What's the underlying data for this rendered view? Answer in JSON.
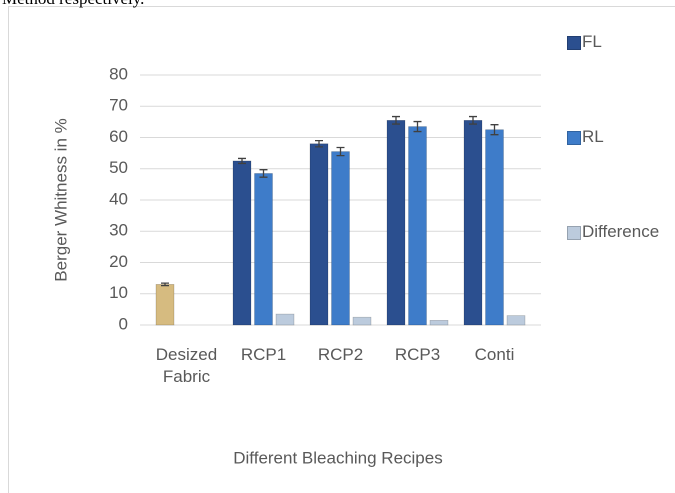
{
  "caption": "Method respectively.",
  "chart_data": {
    "type": "bar",
    "ylabel": "Berger Whitness in %",
    "xlabel": "Different Bleaching Recipes",
    "categories": [
      "Desized Fabric",
      "RCP1",
      "RCP2",
      "RCP3",
      "Conti"
    ],
    "series": [
      {
        "name": "FL",
        "color": "#2b4f8f",
        "colors": [
          "#d6bb80",
          "#2b4f8f",
          "#2b4f8f",
          "#2b4f8f",
          "#2b4f8f"
        ],
        "values": [
          13,
          52.5,
          58,
          65.5,
          65.5
        ],
        "errors": [
          0.4,
          0.8,
          1,
          1.2,
          1.2
        ]
      },
      {
        "name": "RL",
        "color": "#3e7cc9",
        "values": [
          null,
          48.5,
          55.5,
          63.5,
          62.5
        ],
        "errors": [
          null,
          1.2,
          1.3,
          1.6,
          1.6
        ]
      },
      {
        "name": "Difference",
        "color": "#bccbdd",
        "values": [
          null,
          3.5,
          2.5,
          1.5,
          3
        ],
        "errors": [
          null,
          null,
          null,
          null,
          null
        ]
      }
    ],
    "ylim": [
      0,
      80
    ],
    "yticks": [
      0,
      10,
      20,
      30,
      40,
      50,
      60,
      70,
      80
    ],
    "grid": true,
    "legend": "right"
  }
}
